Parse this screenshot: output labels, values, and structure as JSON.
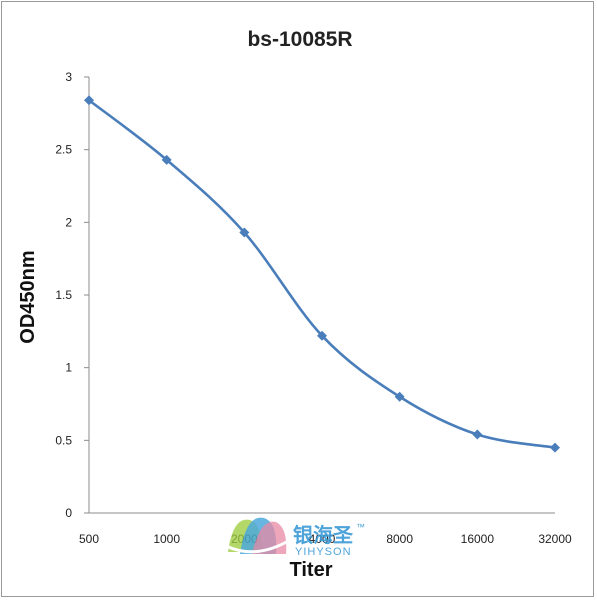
{
  "chart_data": {
    "type": "line",
    "title": "bs-10085R",
    "xlabel": "Titer",
    "ylabel": "OD450nm",
    "categories": [
      "500",
      "1000",
      "2000",
      "4000",
      "8000",
      "16000",
      "32000"
    ],
    "series": [
      {
        "values": [
          2.84,
          2.43,
          1.93,
          1.22,
          0.8,
          0.54,
          0.45
        ]
      }
    ],
    "ylim": [
      0,
      3
    ],
    "yticks": [
      "0",
      "0.5",
      "1",
      "1.5",
      "2",
      "2.5",
      "3"
    ],
    "grid": false,
    "legend": "none",
    "line_color": "#4a7ebb",
    "smooth": true,
    "marker": "diamond"
  },
  "watermark": {
    "text_cn": "银海圣",
    "trademark": "™",
    "text_en": "YIHYSON",
    "color": "#3a9ad6"
  }
}
